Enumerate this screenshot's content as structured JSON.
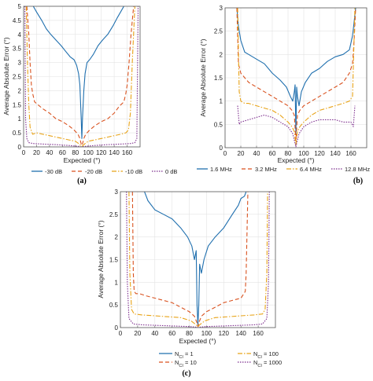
{
  "chart_data": [
    {
      "type": "line",
      "panel_label": "(a)",
      "xlabel": "Expected (°)",
      "ylabel": "Average Absolute Error (°)",
      "xlim": [
        0,
        180
      ],
      "ylim": [
        0,
        5
      ],
      "xticks": [
        "0",
        "20",
        "40",
        "60",
        "80",
        "100",
        "120",
        "140",
        "160"
      ],
      "yticks": [
        "0",
        "0.5",
        "1",
        "1.5",
        "2",
        "2.5",
        "3",
        "3.5",
        "4",
        "4.5",
        "5"
      ],
      "grid": true,
      "legend_position": "bottom",
      "series": [
        {
          "name": "-30 dB",
          "color": "#1f6fae",
          "dash": "",
          "x": [
            15,
            20,
            28,
            35,
            42,
            50,
            58,
            65,
            72,
            78,
            82,
            85,
            87,
            89,
            90,
            91,
            93,
            95,
            98,
            102,
            108,
            115,
            122,
            130,
            138,
            145,
            150,
            155
          ],
          "y": [
            5,
            4.8,
            4.5,
            4.2,
            4.0,
            3.8,
            3.6,
            3.4,
            3.2,
            3.1,
            2.9,
            2.6,
            2.2,
            1.0,
            0.3,
            1.0,
            2.0,
            2.6,
            3.0,
            3.1,
            3.3,
            3.6,
            3.8,
            4.0,
            4.3,
            4.6,
            4.8,
            5
          ]
        },
        {
          "name": "-20 dB",
          "color": "#d9521f",
          "dash": "5,3",
          "x": [
            5,
            8,
            10,
            12,
            14,
            17,
            22,
            30,
            40,
            50,
            60,
            70,
            78,
            84,
            87,
            89,
            90,
            91,
            93,
            96,
            102,
            110,
            120,
            130,
            140,
            148,
            155,
            158,
            160,
            163,
            166,
            170
          ],
          "y": [
            5,
            4.0,
            3.0,
            2.2,
            1.9,
            1.6,
            1.5,
            1.35,
            1.2,
            1.0,
            0.9,
            0.75,
            0.6,
            0.45,
            0.3,
            0.1,
            0.05,
            0.1,
            0.3,
            0.45,
            0.6,
            0.75,
            0.9,
            1.0,
            1.2,
            1.45,
            1.6,
            1.9,
            2.2,
            3.0,
            4.0,
            5
          ]
        },
        {
          "name": "-10 dB",
          "color": "#e8a317",
          "dash": "6,2,1.5,2",
          "x": [
            4,
            6,
            8,
            10,
            14,
            20,
            30,
            40,
            50,
            60,
            70,
            80,
            85,
            88,
            90,
            92,
            95,
            100,
            110,
            120,
            130,
            140,
            150,
            158,
            162,
            165,
            168,
            172
          ],
          "y": [
            5,
            3.0,
            1.5,
            0.7,
            0.45,
            0.5,
            0.45,
            0.4,
            0.35,
            0.3,
            0.25,
            0.2,
            0.12,
            0.05,
            0.02,
            0.05,
            0.12,
            0.2,
            0.25,
            0.3,
            0.35,
            0.4,
            0.45,
            0.5,
            0.6,
            1.2,
            3.0,
            5
          ]
        },
        {
          "name": "0 dB",
          "color": "#7e2f8e",
          "dash": "1.5,1.5",
          "x": [
            2,
            3,
            5,
            8,
            15,
            30,
            50,
            70,
            85,
            90,
            95,
            110,
            130,
            150,
            165,
            172,
            175,
            177
          ],
          "y": [
            5,
            1.0,
            0.3,
            0.15,
            0.12,
            0.1,
            0.08,
            0.05,
            0.02,
            0.0,
            0.02,
            0.05,
            0.08,
            0.1,
            0.12,
            0.15,
            0.3,
            5
          ]
        }
      ]
    },
    {
      "type": "line",
      "panel_label": "(b)",
      "xlabel": "Expected (°)",
      "ylabel": "Average Absolute Error (°)",
      "xlim": [
        0,
        180
      ],
      "ylim": [
        0,
        3
      ],
      "xticks": [
        "0",
        "20",
        "40",
        "60",
        "80",
        "100",
        "120",
        "140",
        "160"
      ],
      "yticks": [
        "0",
        "0.5",
        "1",
        "1.5",
        "2",
        "2.5",
        "3"
      ],
      "grid": true,
      "legend_position": "bottom",
      "series": [
        {
          "name": "1.6 MHz",
          "color": "#1f6fae",
          "dash": "",
          "x": [
            15,
            17,
            20,
            25,
            30,
            40,
            50,
            60,
            70,
            78,
            83,
            86,
            88,
            89,
            90,
            91,
            92,
            94,
            97,
            102,
            110,
            120,
            130,
            140,
            150,
            158,
            162,
            164,
            166
          ],
          "y": [
            3,
            2.6,
            2.3,
            2.05,
            2.0,
            1.9,
            1.8,
            1.6,
            1.45,
            1.3,
            1.1,
            1.0,
            1.2,
            1.35,
            0.3,
            1.3,
            1.1,
            0.9,
            1.2,
            1.4,
            1.6,
            1.7,
            1.85,
            1.95,
            2.0,
            2.1,
            2.4,
            2.7,
            3
          ]
        },
        {
          "name": "3.2 MHz",
          "color": "#d9521f",
          "dash": "5,3",
          "x": [
            15,
            17,
            20,
            25,
            30,
            40,
            50,
            60,
            70,
            80,
            85,
            88,
            90,
            92,
            95,
            100,
            110,
            120,
            130,
            140,
            150,
            158,
            162,
            164,
            166
          ],
          "y": [
            3,
            1.8,
            1.6,
            1.5,
            1.4,
            1.3,
            1.2,
            1.1,
            1.0,
            0.9,
            0.8,
            0.7,
            0.15,
            0.7,
            0.8,
            0.9,
            1.0,
            1.1,
            1.2,
            1.3,
            1.4,
            1.6,
            1.8,
            2.3,
            3
          ]
        },
        {
          "name": "6.4 MHz",
          "color": "#e8a317",
          "dash": "6,2,1.5,2",
          "x": [
            16,
            18,
            20,
            25,
            30,
            40,
            50,
            60,
            70,
            80,
            85,
            88,
            90,
            92,
            95,
            100,
            110,
            120,
            130,
            140,
            150,
            158,
            162,
            165
          ],
          "y": [
            3,
            1.2,
            1.0,
            0.95,
            0.95,
            0.9,
            0.85,
            0.8,
            0.7,
            0.55,
            0.45,
            0.35,
            0.05,
            0.35,
            0.45,
            0.55,
            0.7,
            0.8,
            0.85,
            0.9,
            0.95,
            1.0,
            1.1,
            3
          ]
        },
        {
          "name": "12.8 MHz",
          "color": "#7e2f8e",
          "dash": "1.5,1.5",
          "x": [
            16,
            18,
            20,
            30,
            40,
            50,
            60,
            70,
            80,
            86,
            90,
            94,
            100,
            110,
            120,
            130,
            140,
            150,
            160,
            163,
            165
          ],
          "y": [
            0.9,
            0.5,
            0.55,
            0.6,
            0.65,
            0.7,
            0.65,
            0.55,
            0.45,
            0.3,
            0.02,
            0.3,
            0.45,
            0.55,
            0.6,
            0.6,
            0.6,
            0.55,
            0.55,
            0.45,
            0.9
          ]
        }
      ]
    },
    {
      "type": "line",
      "panel_label": "(c)",
      "xlabel": "Expected (°)",
      "ylabel": "Average Absolute Error (°)",
      "xlim": [
        0,
        180
      ],
      "ylim": [
        0,
        3
      ],
      "xticks": [
        "0",
        "20",
        "40",
        "60",
        "80",
        "100",
        "120",
        "140",
        "160"
      ],
      "yticks": [
        "0",
        "0.5",
        "1",
        "1.5",
        "2",
        "2.5",
        "3"
      ],
      "grid": true,
      "legend_position": "bottom",
      "legend_prefix": "N",
      "legend_subscript": "CI",
      "series": [
        {
          "name": "1",
          "color": "#1f6fae",
          "dash": "",
          "x": [
            28,
            32,
            40,
            50,
            60,
            70,
            78,
            83,
            86,
            88,
            89,
            90,
            91,
            92,
            94,
            97,
            102,
            110,
            120,
            130,
            137,
            140,
            144,
            146
          ],
          "y": [
            3,
            2.8,
            2.6,
            2.5,
            2.4,
            2.2,
            2.0,
            1.8,
            1.5,
            1.7,
            0.5,
            0.05,
            0.5,
            1.4,
            1.2,
            1.5,
            1.8,
            2.0,
            2.2,
            2.5,
            2.7,
            2.85,
            2.9,
            3
          ]
        },
        {
          "name": "10",
          "color": "#d9521f",
          "dash": "5,3",
          "x": [
            14,
            15,
            16,
            18,
            22,
            30,
            40,
            50,
            60,
            70,
            80,
            86,
            89,
            90,
            91,
            94,
            100,
            110,
            120,
            130,
            140,
            145,
            146,
            148
          ],
          "y": [
            3,
            1.2,
            0.8,
            0.75,
            0.75,
            0.7,
            0.65,
            0.6,
            0.55,
            0.45,
            0.35,
            0.25,
            0.1,
            0.02,
            0.1,
            0.25,
            0.35,
            0.45,
            0.55,
            0.6,
            0.65,
            0.8,
            1.2,
            3
          ]
        },
        {
          "name": "100",
          "color": "#e8a317",
          "dash": "6,2,1.5,2",
          "x": [
            10,
            11,
            13,
            16,
            25,
            40,
            55,
            70,
            82,
            88,
            90,
            92,
            98,
            110,
            125,
            140,
            155,
            165,
            168,
            170,
            171
          ],
          "y": [
            3,
            1.2,
            0.4,
            0.3,
            0.28,
            0.26,
            0.24,
            0.22,
            0.15,
            0.06,
            0.02,
            0.06,
            0.15,
            0.22,
            0.24,
            0.26,
            0.28,
            0.3,
            0.4,
            1.2,
            3
          ]
        },
        {
          "name": "1000",
          "color": "#7e2f8e",
          "dash": "1.5,1.5",
          "x": [
            7,
            8,
            10,
            15,
            25,
            40,
            55,
            70,
            82,
            88,
            90,
            92,
            98,
            110,
            125,
            140,
            155,
            165,
            170,
            172,
            173
          ],
          "y": [
            3,
            1.0,
            0.2,
            0.08,
            0.06,
            0.05,
            0.04,
            0.03,
            0.02,
            0.01,
            0.0,
            0.01,
            0.02,
            0.03,
            0.04,
            0.05,
            0.06,
            0.08,
            0.2,
            1.0,
            3
          ]
        }
      ]
    }
  ]
}
